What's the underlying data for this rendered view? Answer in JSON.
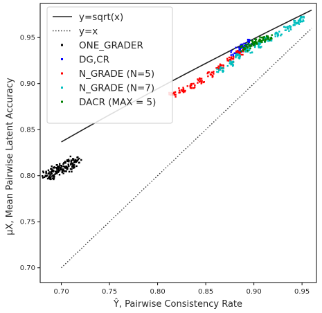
{
  "chart_data": {
    "type": "scatter",
    "title": "",
    "xlabel": "Ŷ, Pairwise Consistency Rate",
    "ylabel": "μX, Mean Pairwise Latent Accuracy",
    "xlim": [
      0.678,
      0.965
    ],
    "ylim": [
      0.684,
      0.987
    ],
    "xticks": [
      0.7,
      0.75,
      0.8,
      0.85,
      0.9,
      0.95
    ],
    "yticks": [
      0.7,
      0.75,
      0.8,
      0.85,
      0.9,
      0.95
    ],
    "xtick_labels": [
      "0.70",
      "0.75",
      "0.80",
      "0.85",
      "0.90",
      "0.95"
    ],
    "ytick_labels": [
      "0.70",
      "0.75",
      "0.80",
      "0.85",
      "0.90",
      "0.95"
    ],
    "grid": false,
    "legend_position": "top-left",
    "lines": [
      {
        "name": "y=sqrt(x)",
        "style": "solid",
        "color": "#222222",
        "x_range": [
          0.7,
          0.96
        ]
      },
      {
        "name": "y=x",
        "style": "dotted",
        "color": "#333333",
        "x_range": [
          0.7,
          0.96
        ]
      }
    ],
    "series": [
      {
        "name": "ONE_GRADER",
        "color": "#000000",
        "x": [
          0.685,
          0.69,
          0.695,
          0.7,
          0.705,
          0.71,
          0.715
        ],
        "y": [
          0.8,
          0.802,
          0.805,
          0.807,
          0.81,
          0.812,
          0.815
        ]
      },
      {
        "name": "DG,CR",
        "color": "#0000ff",
        "x": [
          0.88,
          0.885,
          0.89,
          0.895
        ],
        "y": [
          0.933,
          0.937,
          0.941,
          0.945
        ]
      },
      {
        "name": "N_GRADE (N=5)",
        "color": "#ff0000",
        "x": [
          0.815,
          0.825,
          0.835,
          0.845,
          0.855,
          0.865,
          0.875,
          0.885
        ],
        "y": [
          0.888,
          0.893,
          0.898,
          0.903,
          0.91,
          0.918,
          0.926,
          0.934
        ]
      },
      {
        "name": "N_GRADE (N=7)",
        "color": "#00bfbf",
        "x": [
          0.865,
          0.875,
          0.885,
          0.895,
          0.905,
          0.915,
          0.925,
          0.935,
          0.945,
          0.948
        ],
        "y": [
          0.915,
          0.922,
          0.93,
          0.936,
          0.942,
          0.948,
          0.954,
          0.96,
          0.966,
          0.97
        ]
      },
      {
        "name": "DACR (MAX = 5)",
        "color": "#008000",
        "x": [
          0.89,
          0.895,
          0.9,
          0.905,
          0.91,
          0.915
        ],
        "y": [
          0.938,
          0.941,
          0.944,
          0.946,
          0.948,
          0.95
        ]
      }
    ]
  }
}
